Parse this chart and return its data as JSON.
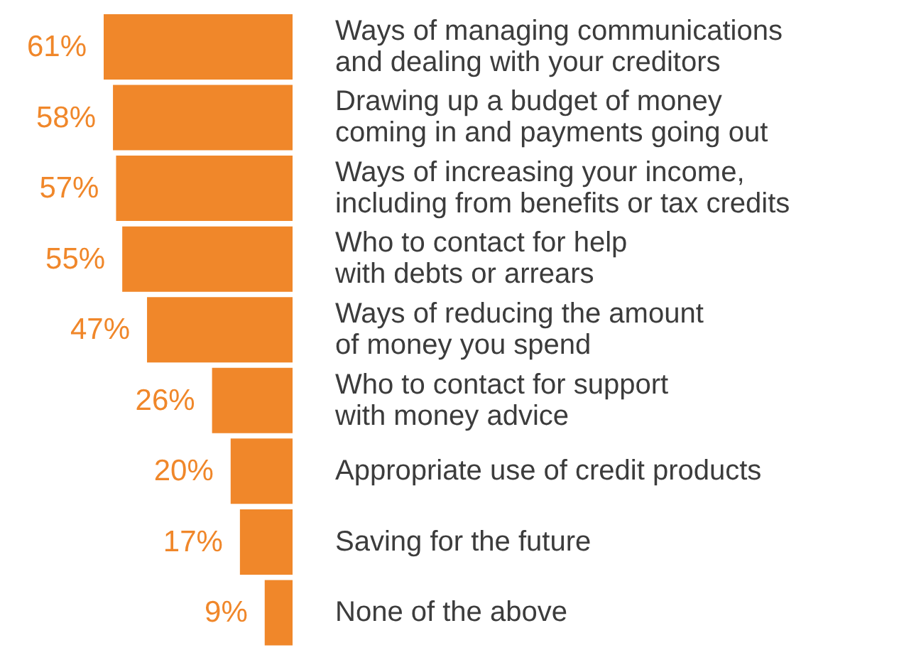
{
  "chart_data": {
    "type": "bar",
    "orientation": "horizontal",
    "categories": [
      "Ways of managing communications\nand dealing with your creditors",
      "Drawing up a budget of money\ncoming in and payments going out",
      "Ways of increasing your income,\nincluding from benefits or tax credits",
      "Who to contact for help\nwith debts or arrears",
      "Ways of reducing the amount\nof money you spend",
      "Who to contact for support\nwith money advice",
      "Appropriate use of credit products",
      "Saving for the future",
      "None of the above"
    ],
    "values": [
      61,
      58,
      57,
      55,
      47,
      26,
      20,
      17,
      9
    ],
    "value_labels": [
      "61%",
      "58%",
      "57%",
      "55%",
      "47%",
      "26%",
      "20%",
      "17%",
      "9%"
    ],
    "color": "#f0872a",
    "grid": false,
    "legend": false
  }
}
